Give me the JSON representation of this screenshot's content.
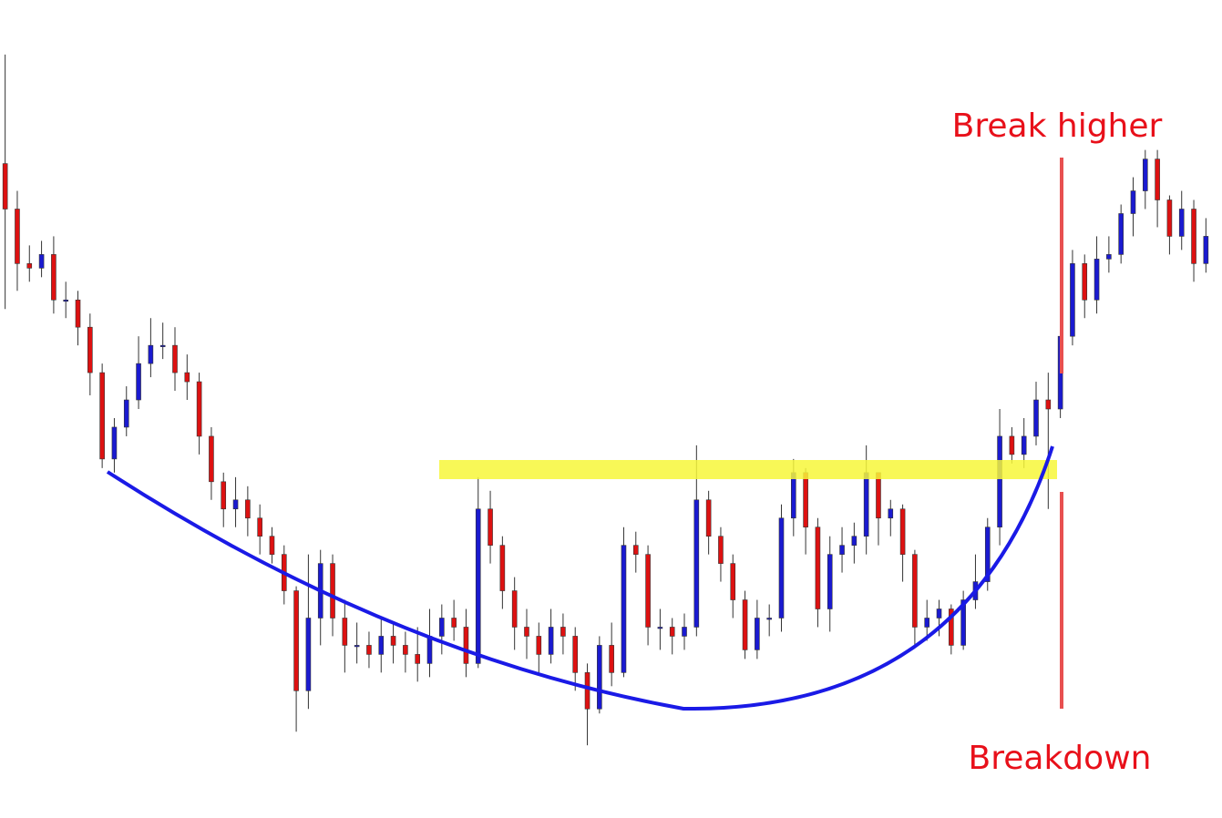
{
  "chart_data": {
    "type": "candlestick",
    "up_color": "#1a1ad0",
    "down_color": "#dd1111",
    "ylim": [
      0,
      900
    ],
    "annotations": [
      "Break higher",
      "Breakdown"
    ],
    "open": [
      720,
      670,
      610,
      605,
      620,
      570,
      570,
      540,
      490,
      395,
      430,
      460,
      500,
      520,
      520,
      490,
      480,
      420,
      370,
      340,
      350,
      330,
      310,
      290,
      250,
      140,
      220,
      280,
      220,
      190,
      190,
      180,
      200,
      190,
      180,
      170,
      200,
      220,
      210,
      170,
      340,
      300,
      250,
      210,
      200,
      180,
      210,
      200,
      160,
      120,
      190,
      160,
      300,
      290,
      210,
      210,
      200,
      210,
      350,
      310,
      280,
      240,
      185,
      220,
      220,
      330,
      380,
      320,
      230,
      290,
      300,
      310,
      380,
      330,
      340,
      290,
      210,
      220,
      230,
      190,
      240,
      260,
      320,
      420,
      400,
      420,
      460,
      450,
      530,
      610,
      570,
      615,
      620,
      665,
      690,
      725,
      680,
      640,
      670,
      610
    ],
    "high": [
      840,
      690,
      630,
      635,
      640,
      590,
      580,
      555,
      500,
      440,
      475,
      530,
      550,
      545,
      540,
      510,
      490,
      430,
      380,
      375,
      365,
      345,
      320,
      300,
      255,
      290,
      295,
      290,
      240,
      215,
      205,
      220,
      215,
      205,
      210,
      230,
      235,
      240,
      230,
      375,
      360,
      310,
      265,
      230,
      215,
      230,
      225,
      210,
      170,
      200,
      215,
      320,
      315,
      300,
      230,
      220,
      225,
      410,
      360,
      320,
      290,
      250,
      240,
      235,
      345,
      395,
      385,
      330,
      310,
      320,
      325,
      410,
      380,
      350,
      345,
      295,
      240,
      240,
      235,
      250,
      290,
      330,
      450,
      430,
      440,
      480,
      490,
      545,
      625,
      620,
      640,
      640,
      675,
      705,
      735,
      735,
      685,
      690,
      680,
      660
    ],
    "low": [
      560,
      580,
      590,
      595,
      555,
      550,
      520,
      465,
      385,
      380,
      420,
      450,
      485,
      505,
      470,
      460,
      400,
      350,
      320,
      320,
      310,
      290,
      280,
      235,
      95,
      120,
      190,
      200,
      160,
      170,
      165,
      160,
      170,
      160,
      150,
      155,
      180,
      195,
      155,
      165,
      280,
      230,
      185,
      175,
      160,
      170,
      180,
      140,
      80,
      115,
      145,
      155,
      270,
      190,
      185,
      180,
      185,
      200,
      290,
      260,
      220,
      175,
      175,
      200,
      205,
      310,
      290,
      210,
      205,
      270,
      280,
      290,
      300,
      310,
      260,
      190,
      195,
      200,
      180,
      185,
      230,
      250,
      300,
      390,
      385,
      410,
      340,
      440,
      520,
      550,
      555,
      600,
      610,
      640,
      670,
      650,
      620,
      625,
      590,
      600
    ],
    "close": [
      670,
      610,
      605,
      620,
      570,
      570,
      540,
      490,
      395,
      430,
      460,
      500,
      520,
      520,
      490,
      480,
      420,
      370,
      340,
      350,
      330,
      310,
      290,
      250,
      140,
      220,
      280,
      220,
      190,
      190,
      180,
      200,
      190,
      180,
      170,
      200,
      220,
      210,
      170,
      340,
      300,
      250,
      210,
      200,
      180,
      210,
      200,
      160,
      120,
      190,
      160,
      300,
      290,
      210,
      210,
      200,
      210,
      350,
      310,
      280,
      240,
      185,
      220,
      220,
      330,
      380,
      320,
      230,
      290,
      300,
      310,
      380,
      330,
      340,
      290,
      210,
      220,
      230,
      190,
      240,
      260,
      320,
      420,
      400,
      420,
      460,
      450,
      530,
      610,
      570,
      615,
      620,
      665,
      690,
      725,
      680,
      640,
      670,
      610,
      640
    ]
  }
}
